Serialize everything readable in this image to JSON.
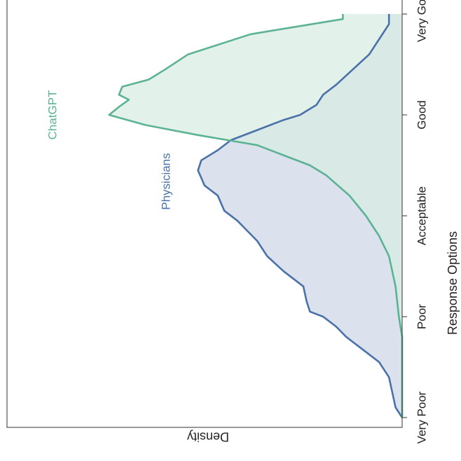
{
  "chart_data": {
    "type": "area",
    "orientation": "rotated-90",
    "x_axis_title": "Response Options",
    "y_axis_title": "Density",
    "categories": [
      "Very Poor",
      "Poor",
      "Acceptable",
      "Good",
      "Very Good"
    ],
    "x_range": [
      1,
      5
    ],
    "y_range": [
      0,
      1
    ],
    "grid": false,
    "legend": "inline labels",
    "series": [
      {
        "name": "Physicians",
        "color": "#4a72a8",
        "fill": "#cdd6e6",
        "x": [
          1.0,
          1.1,
          1.25,
          1.4,
          1.55,
          1.7,
          1.8,
          1.9,
          2.0,
          2.05,
          2.15,
          2.3,
          2.45,
          2.6,
          2.75,
          2.85,
          2.95,
          3.05,
          3.2,
          3.3,
          3.45,
          3.55,
          3.65,
          3.75,
          3.85,
          3.95,
          4.0,
          4.1,
          4.2,
          4.3,
          4.45,
          4.6,
          4.75,
          4.9,
          5.0
        ],
        "y": [
          0.0,
          0.02,
          0.03,
          0.04,
          0.07,
          0.13,
          0.17,
          0.2,
          0.24,
          0.28,
          0.29,
          0.3,
          0.36,
          0.41,
          0.44,
          0.47,
          0.5,
          0.54,
          0.56,
          0.6,
          0.62,
          0.61,
          0.56,
          0.52,
          0.44,
          0.36,
          0.31,
          0.26,
          0.24,
          0.2,
          0.15,
          0.1,
          0.07,
          0.04,
          0.04
        ]
      },
      {
        "name": "ChatGPT",
        "color": "#5bb394",
        "fill": "#d8ebe3",
        "x": [
          1.0,
          1.5,
          1.8,
          2.0,
          2.3,
          2.6,
          2.8,
          3.0,
          3.2,
          3.4,
          3.5,
          3.6,
          3.7,
          3.75,
          3.8,
          3.9,
          4.0,
          4.08,
          4.15,
          4.2,
          4.28,
          4.35,
          4.45,
          4.6,
          4.8,
          4.95,
          5.0
        ],
        "y": [
          0.0,
          0.0,
          0.0,
          0.01,
          0.02,
          0.04,
          0.07,
          0.11,
          0.16,
          0.23,
          0.28,
          0.36,
          0.44,
          0.53,
          0.62,
          0.78,
          0.89,
          0.86,
          0.83,
          0.86,
          0.85,
          0.77,
          0.72,
          0.65,
          0.46,
          0.18,
          0.18
        ]
      }
    ]
  }
}
